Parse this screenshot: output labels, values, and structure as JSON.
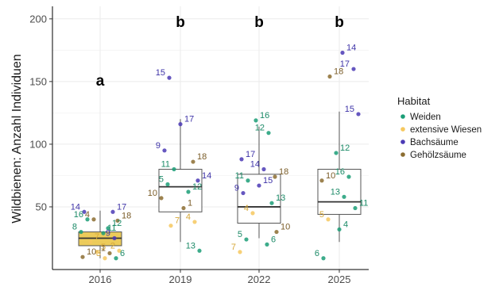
{
  "chart_data": {
    "type": "boxplot",
    "ylabel": "Wildbienen: Anzahl Individuen",
    "xlabel": "",
    "categories": [
      "2016",
      "2019",
      "2022",
      "2025"
    ],
    "ylim": [
      0,
      210
    ],
    "yticks": [
      50,
      100,
      150,
      200
    ],
    "grid": true,
    "group_letters": [
      "a",
      "b",
      "b",
      "b"
    ],
    "boxes": [
      {
        "year": "2016",
        "min": 9,
        "q1": 19,
        "median": 25,
        "q3": 30,
        "max": 47,
        "fill": "#eccb5a"
      },
      {
        "year": "2019",
        "min": 22,
        "q1": 46,
        "median": 66,
        "q3": 80,
        "max": 120,
        "fill": "#ffffff"
      },
      {
        "year": "2022",
        "min": 25,
        "q1": 37,
        "median": 50,
        "q3": 76,
        "max": 114,
        "fill": "#ffffff"
      },
      {
        "year": "2025",
        "min": 22,
        "q1": 44,
        "median": 54,
        "q3": 80,
        "max": 126,
        "fill": "#ffffff"
      }
    ],
    "legend": {
      "title": "Habitat",
      "position": "right",
      "entries": [
        {
          "label": "Weiden",
          "color": "#1b9e77"
        },
        {
          "label": "extensive Wiesen",
          "color": "#f6c85f"
        },
        {
          "label": "Bachsäume",
          "color": "#4b3ab5"
        },
        {
          "label": "Gehölzsäume",
          "color": "#8c6d31"
        }
      ]
    },
    "points": [
      {
        "year": "2016",
        "habitat": "Bachsäume",
        "y": 46,
        "label": "14"
      },
      {
        "year": "2016",
        "habitat": "Bachsäume",
        "y": 46,
        "label": "17"
      },
      {
        "year": "2016",
        "habitat": "Gehölzsäume",
        "y": 40,
        "label": "4"
      },
      {
        "year": "2016",
        "habitat": "Gehölzsäume",
        "y": 39,
        "label": "18"
      },
      {
        "year": "2016",
        "habitat": "Weiden",
        "y": 40,
        "label": "16"
      },
      {
        "year": "2016",
        "habitat": "Weiden",
        "y": 33,
        "label": "12"
      },
      {
        "year": "2016",
        "habitat": "Weiden",
        "y": 30,
        "label": "8"
      },
      {
        "year": "2016",
        "habitat": "Weiden",
        "y": 29,
        "label": "11"
      },
      {
        "year": "2016",
        "habitat": "Bachsäume",
        "y": 25,
        "label": "9"
      },
      {
        "year": "2016",
        "habitat": "extensive Wiesen",
        "y": 22,
        "label": "7"
      },
      {
        "year": "2016",
        "habitat": "extensive Wiesen",
        "y": 15,
        "label": "2"
      },
      {
        "year": "2016",
        "habitat": "extensive Wiesen",
        "y": 14,
        "label": "5"
      },
      {
        "year": "2016",
        "habitat": "Gehölzsäume",
        "y": 13,
        "label": "1"
      },
      {
        "year": "2016",
        "habitat": "Gehölzsäume",
        "y": 10,
        "label": "10"
      },
      {
        "year": "2016",
        "habitat": "extensive Wiesen",
        "y": 9,
        "label": "3"
      },
      {
        "year": "2016",
        "habitat": "Weiden",
        "y": 9,
        "label": "6"
      },
      {
        "year": "2019",
        "habitat": "Bachsäume",
        "y": 153,
        "label": "15"
      },
      {
        "year": "2019",
        "habitat": "Bachsäume",
        "y": 116,
        "label": "17"
      },
      {
        "year": "2019",
        "habitat": "Bachsäume",
        "y": 95,
        "label": "9"
      },
      {
        "year": "2019",
        "habitat": "Gehölzsäume",
        "y": 86,
        "label": "18"
      },
      {
        "year": "2019",
        "habitat": "Weiden",
        "y": 80,
        "label": "11"
      },
      {
        "year": "2019",
        "habitat": "Bachsäume",
        "y": 71,
        "label": "14"
      },
      {
        "year": "2019",
        "habitat": "Weiden",
        "y": 68,
        "label": "5"
      },
      {
        "year": "2019",
        "habitat": "Weiden",
        "y": 62,
        "label": "12"
      },
      {
        "year": "2019",
        "habitat": "Gehölzsäume",
        "y": 57,
        "label": "10"
      },
      {
        "year": "2019",
        "habitat": "Gehölzsäume",
        "y": 49,
        "label": "1"
      },
      {
        "year": "2019",
        "habitat": "extensive Wiesen",
        "y": 38,
        "label": "4"
      },
      {
        "year": "2019",
        "habitat": "extensive Wiesen",
        "y": 35,
        "label": "7"
      },
      {
        "year": "2019",
        "habitat": "Weiden",
        "y": 15,
        "label": "13"
      },
      {
        "year": "2022",
        "habitat": "Weiden",
        "y": 119,
        "label": "16"
      },
      {
        "year": "2022",
        "habitat": "Weiden",
        "y": 109,
        "label": "12"
      },
      {
        "year": "2022",
        "habitat": "Bachsäume",
        "y": 88,
        "label": "17"
      },
      {
        "year": "2022",
        "habitat": "Bachsäume",
        "y": 80,
        "label": "14"
      },
      {
        "year": "2022",
        "habitat": "Gehölzsäume",
        "y": 74,
        "label": "18"
      },
      {
        "year": "2022",
        "habitat": "Weiden",
        "y": 71,
        "label": "11"
      },
      {
        "year": "2022",
        "habitat": "Bachsäume",
        "y": 67,
        "label": "15"
      },
      {
        "year": "2022",
        "habitat": "Bachsäume",
        "y": 61,
        "label": "9"
      },
      {
        "year": "2022",
        "habitat": "Weiden",
        "y": 53,
        "label": "13"
      },
      {
        "year": "2022",
        "habitat": "extensive Wiesen",
        "y": 45,
        "label": "4"
      },
      {
        "year": "2022",
        "habitat": "Gehölzsäume",
        "y": 30,
        "label": "10"
      },
      {
        "year": "2022",
        "habitat": "Weiden",
        "y": 24,
        "label": "5"
      },
      {
        "year": "2022",
        "habitat": "Weiden",
        "y": 20,
        "label": "6"
      },
      {
        "year": "2022",
        "habitat": "extensive Wiesen",
        "y": 14,
        "label": "7"
      },
      {
        "year": "2025",
        "habitat": "Bachsäume",
        "y": 173,
        "label": "14"
      },
      {
        "year": "2025",
        "habitat": "Bachsäume",
        "y": 160,
        "label": "17"
      },
      {
        "year": "2025",
        "habitat": "Gehölzsäume",
        "y": 154,
        "label": "18"
      },
      {
        "year": "2025",
        "habitat": "Bachsäume",
        "y": 124,
        "label": "15"
      },
      {
        "year": "2025",
        "habitat": "Weiden",
        "y": 93,
        "label": "12"
      },
      {
        "year": "2025",
        "habitat": "Weiden",
        "y": 74,
        "label": "16"
      },
      {
        "year": "2025",
        "habitat": "Gehölzsäume",
        "y": 71,
        "label": "10"
      },
      {
        "year": "2025",
        "habitat": "Weiden",
        "y": 58,
        "label": "13"
      },
      {
        "year": "2025",
        "habitat": "Weiden",
        "y": 49,
        "label": "11"
      },
      {
        "year": "2025",
        "habitat": "extensive Wiesen",
        "y": 40,
        "label": "5"
      },
      {
        "year": "2025",
        "habitat": "Weiden",
        "y": 32,
        "label": "4"
      },
      {
        "year": "2025",
        "habitat": "Weiden",
        "y": 9,
        "label": "6"
      }
    ]
  }
}
